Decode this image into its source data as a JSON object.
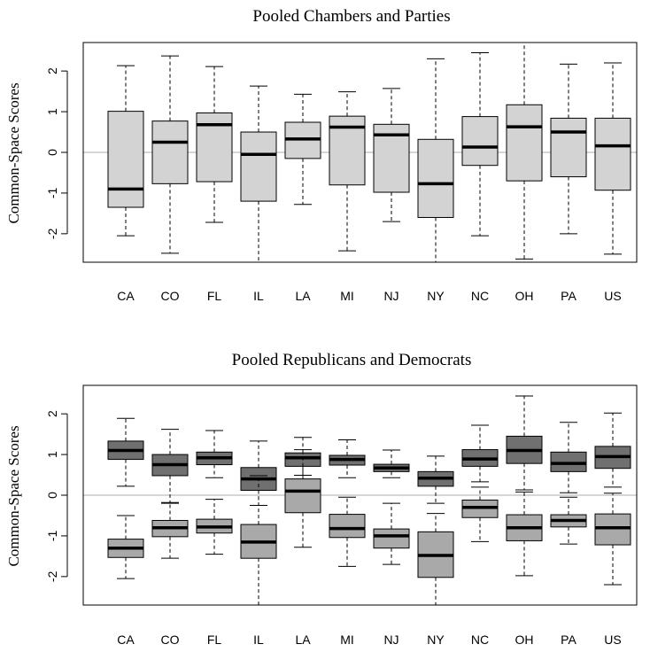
{
  "chart_data": [
    {
      "type": "boxplot",
      "title": "Pooled Chambers and Parties",
      "ylabel": "Common-Space Scores",
      "xlabel": "",
      "ylim": [
        -2.7,
        2.7
      ],
      "yticks": [
        -2,
        -1,
        0,
        1,
        2
      ],
      "reference_line": 0,
      "grid": false,
      "categories": [
        "CA",
        "CO",
        "FL",
        "IL",
        "LA",
        "MI",
        "NJ",
        "NY",
        "NC",
        "OH",
        "PA",
        "US"
      ],
      "series": [
        {
          "color": "#d3d3d3",
          "boxes": [
            {
              "whisker_low": -2.05,
              "q1": -1.35,
              "median": -0.9,
              "q3": 1.01,
              "whisker_high": 2.13
            },
            {
              "whisker_low": -2.48,
              "q1": -0.77,
              "median": 0.25,
              "q3": 0.77,
              "whisker_high": 2.37
            },
            {
              "whisker_low": -1.72,
              "q1": -0.72,
              "median": 0.68,
              "q3": 0.97,
              "whisker_high": 2.11
            },
            {
              "whisker_low": -2.7,
              "q1": -1.2,
              "median": -0.05,
              "q3": 0.5,
              "whisker_high": 1.63
            },
            {
              "whisker_low": -1.28,
              "q1": -0.15,
              "median": 0.33,
              "q3": 0.74,
              "whisker_high": 1.43
            },
            {
              "whisker_low": -2.42,
              "q1": -0.8,
              "median": 0.62,
              "q3": 0.89,
              "whisker_high": 1.49
            },
            {
              "whisker_low": -1.7,
              "q1": -0.98,
              "median": 0.43,
              "q3": 0.69,
              "whisker_high": 1.57
            },
            {
              "whisker_low": -2.7,
              "q1": -1.6,
              "median": -0.77,
              "q3": 0.32,
              "whisker_high": 2.3
            },
            {
              "whisker_low": -2.05,
              "q1": -0.32,
              "median": 0.13,
              "q3": 0.88,
              "whisker_high": 2.45
            },
            {
              "whisker_low": -2.62,
              "q1": -0.7,
              "median": 0.63,
              "q3": 1.17,
              "whisker_high": 2.7
            },
            {
              "whisker_low": -2.0,
              "q1": -0.6,
              "median": 0.5,
              "q3": 0.84,
              "whisker_high": 2.17
            },
            {
              "whisker_low": -2.5,
              "q1": -0.93,
              "median": 0.16,
              "q3": 0.84,
              "whisker_high": 2.2
            }
          ]
        }
      ]
    },
    {
      "type": "boxplot",
      "title": "Pooled Republicans and Democrats",
      "ylabel": "Common-Space Scores",
      "xlabel": "",
      "ylim": [
        -2.7,
        2.7
      ],
      "yticks": [
        -2,
        -1,
        0,
        1,
        2
      ],
      "reference_line": 0,
      "grid": false,
      "categories": [
        "CA",
        "CO",
        "FL",
        "IL",
        "LA",
        "MI",
        "NJ",
        "NY",
        "NC",
        "OH",
        "PA",
        "US"
      ],
      "series": [
        {
          "color": "#707070",
          "boxes": [
            {
              "whisker_low": 0.22,
              "q1": 0.88,
              "median": 1.1,
              "q3": 1.33,
              "whisker_high": 1.89
            },
            {
              "whisker_low": -0.2,
              "q1": 0.48,
              "median": 0.75,
              "q3": 1.0,
              "whisker_high": 1.62
            },
            {
              "whisker_low": 0.43,
              "q1": 0.75,
              "median": 0.92,
              "q3": 1.06,
              "whisker_high": 1.59
            },
            {
              "whisker_low": -0.25,
              "q1": 0.12,
              "median": 0.4,
              "q3": 0.68,
              "whisker_high": 1.33
            },
            {
              "whisker_low": 0.49,
              "q1": 0.71,
              "median": 0.92,
              "q3": 1.04,
              "whisker_high": 1.42
            },
            {
              "whisker_low": 0.43,
              "q1": 0.74,
              "median": 0.88,
              "q3": 0.98,
              "whisker_high": 1.36
            },
            {
              "whisker_low": 0.43,
              "q1": 0.58,
              "median": 0.67,
              "q3": 0.76,
              "whisker_high": 1.11
            },
            {
              "whisker_low": -0.2,
              "q1": 0.22,
              "median": 0.42,
              "q3": 0.58,
              "whisker_high": 0.96
            },
            {
              "whisker_low": 0.33,
              "q1": 0.71,
              "median": 0.89,
              "q3": 1.12,
              "whisker_high": 1.72
            },
            {
              "whisker_low": 0.13,
              "q1": 0.78,
              "median": 1.1,
              "q3": 1.45,
              "whisker_high": 2.44
            },
            {
              "whisker_low": 0.06,
              "q1": 0.58,
              "median": 0.78,
              "q3": 1.06,
              "whisker_high": 1.79
            },
            {
              "whisker_low": 0.2,
              "q1": 0.66,
              "median": 0.95,
              "q3": 1.2,
              "whisker_high": 2.02
            }
          ]
        },
        {
          "color": "#a9a9a9",
          "boxes": [
            {
              "whisker_low": -2.05,
              "q1": -1.53,
              "median": -1.3,
              "q3": -1.08,
              "whisker_high": -0.5
            },
            {
              "whisker_low": -1.55,
              "q1": -1.02,
              "median": -0.8,
              "q3": -0.62,
              "whisker_high": -0.18
            },
            {
              "whisker_low": -1.45,
              "q1": -0.93,
              "median": -0.78,
              "q3": -0.59,
              "whisker_high": -0.1
            },
            {
              "whisker_low": -2.7,
              "q1": -1.55,
              "median": -1.15,
              "q3": -0.72,
              "whisker_high": 0.48
            },
            {
              "whisker_low": -1.28,
              "q1": -0.43,
              "median": 0.1,
              "q3": 0.4,
              "whisker_high": 1.12
            },
            {
              "whisker_low": -1.75,
              "q1": -1.04,
              "median": -0.82,
              "q3": -0.47,
              "whisker_high": -0.05
            },
            {
              "whisker_low": -1.7,
              "q1": -1.3,
              "median": -1.0,
              "q3": -0.83,
              "whisker_high": -0.2
            },
            {
              "whisker_low": -2.7,
              "q1": -2.02,
              "median": -1.48,
              "q3": -0.9,
              "whisker_high": -0.45
            },
            {
              "whisker_low": -1.14,
              "q1": -0.55,
              "median": -0.3,
              "q3": -0.12,
              "whisker_high": 0.2
            },
            {
              "whisker_low": -1.98,
              "q1": -1.12,
              "median": -0.8,
              "q3": -0.48,
              "whisker_high": 0.08
            },
            {
              "whisker_low": -1.2,
              "q1": -0.78,
              "median": -0.62,
              "q3": -0.48,
              "whisker_high": -0.05
            },
            {
              "whisker_low": -2.2,
              "q1": -1.22,
              "median": -0.8,
              "q3": -0.46,
              "whisker_high": 0.05
            }
          ]
        }
      ]
    }
  ]
}
